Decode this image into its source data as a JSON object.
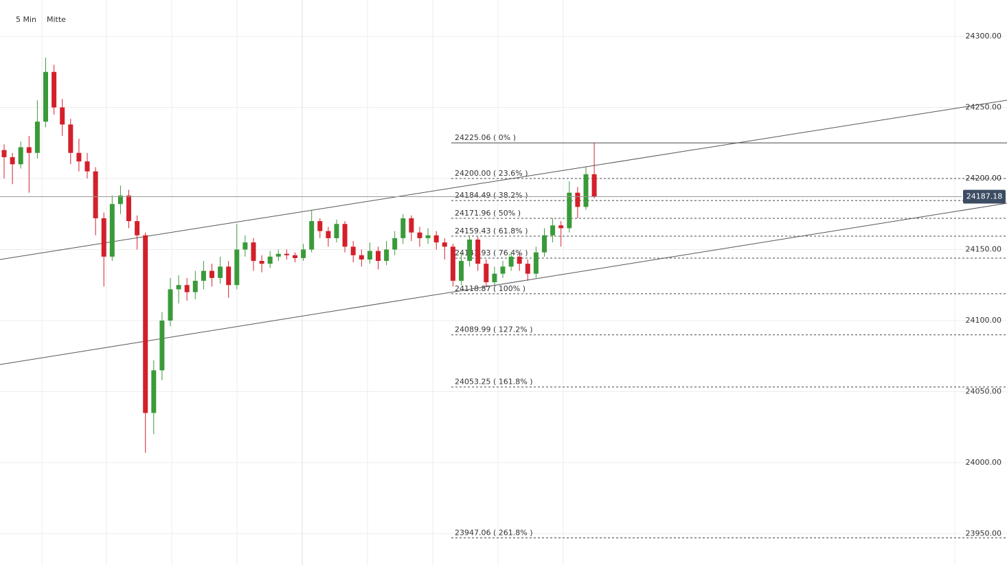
{
  "chart_data": {
    "type": "candlestick",
    "timeframe": "5 Min",
    "mode": "Mitte",
    "ylim": [
      23928,
      24325.6
    ],
    "yticks": [
      {
        "value": 23950,
        "label": "23950.00"
      },
      {
        "value": 24000,
        "label": "24000.00"
      },
      {
        "value": 24050,
        "label": "24050.00"
      },
      {
        "value": 24100,
        "label": "24100.00"
      },
      {
        "value": 24150,
        "label": "24150.00"
      },
      {
        "value": 24200,
        "label": "24200.00"
      },
      {
        "value": 24250,
        "label": "24250.00"
      },
      {
        "value": 24300,
        "label": "24300.00"
      }
    ],
    "grid": true,
    "up_color": "#3a9a3a",
    "down_color": "#d3202a",
    "open": [
      24220,
      24215,
      24210,
      24222,
      24218,
      24240,
      24275,
      24250,
      24238,
      24218,
      24212,
      24205,
      24172,
      24145,
      24182,
      24188,
      24170,
      24160,
      24035,
      24065,
      24100,
      24122,
      24125,
      24120,
      24128,
      24135,
      24130,
      24138,
      24125,
      24150,
      24155,
      24142,
      24140,
      24145,
      24147,
      24146,
      24144,
      24150,
      24170,
      24163,
      24158,
      24168,
      24152,
      24146,
      24143,
      24149,
      24142,
      24150,
      24158,
      24172,
      24162,
      24158,
      24160,
      24155,
      24152,
      24128,
      24142,
      24157,
      24140,
      24127,
      24133,
      24138,
      24145,
      24140,
      24133,
      24148,
      24160,
      24167,
      24165,
      24190,
      24180,
      24203
    ],
    "high": [
      24224,
      24218,
      24226,
      24230,
      24255,
      24285,
      24280,
      24256,
      24242,
      24228,
      24218,
      24208,
      24176,
      24188,
      24195,
      24192,
      24174,
      24162,
      24072,
      24106,
      24130,
      24132,
      24130,
      24135,
      24142,
      24140,
      24145,
      24142,
      24168,
      24160,
      24158,
      24146,
      24149,
      24150,
      24150,
      24148,
      24154,
      24178,
      24172,
      24166,
      24171,
      24170,
      24156,
      24150,
      24155,
      24152,
      24156,
      24163,
      24175,
      24174,
      24166,
      24165,
      24163,
      24158,
      24154,
      24148,
      24160,
      24159,
      24143,
      24138,
      24142,
      24148,
      24148,
      24143,
      24152,
      24165,
      24172,
      24170,
      24198,
      24194,
      24208,
      24225.06
    ],
    "low": [
      24200,
      24196,
      24207,
      24190,
      24214,
      24236,
      24245,
      24230,
      24210,
      24205,
      24200,
      24160,
      24124,
      24142,
      24175,
      24165,
      24150,
      24007,
      24020,
      24058,
      24096,
      24112,
      24114,
      24115,
      24122,
      24124,
      24126,
      24116,
      24122,
      24145,
      24135,
      24134,
      24137,
      24142,
      24143,
      24141,
      24142,
      24148,
      24158,
      24152,
      24155,
      24148,
      24141,
      24138,
      24140,
      24136,
      24139,
      24146,
      24154,
      24156,
      24152,
      24154,
      24150,
      24143,
      24124,
      24125,
      24138,
      24135,
      24124,
      24125,
      24130,
      24135,
      24135,
      24128,
      24130,
      24145,
      24155,
      24152,
      24162,
      24172,
      24178,
      24186
    ],
    "close": [
      24215,
      24210,
      24222,
      24218,
      24240,
      24275,
      24250,
      24238,
      24218,
      24212,
      24205,
      24172,
      24145,
      24182,
      24188,
      24170,
      24160,
      24035,
      24065,
      24100,
      24122,
      24125,
      24120,
      24128,
      24135,
      24130,
      24138,
      24125,
      24150,
      24155,
      24142,
      24140,
      24145,
      24147,
      24146,
      24144,
      24150,
      24170,
      24163,
      24158,
      24168,
      24152,
      24146,
      24143,
      24149,
      24142,
      24150,
      24158,
      24172,
      24162,
      24158,
      24160,
      24155,
      24152,
      24128,
      24142,
      24157,
      24140,
      24127,
      24133,
      24138,
      24145,
      24140,
      24133,
      24148,
      24160,
      24167,
      24165,
      24190,
      24180,
      24203,
      24187.18
    ],
    "last_price": 24187.18,
    "fib_levels": [
      {
        "value": 24225.06,
        "label": "24225.06 ( 0% )"
      },
      {
        "value": 24200.0,
        "label": "24200.00 ( 23.6% )"
      },
      {
        "value": 24184.49,
        "label": "24184.49 ( 38.2% )"
      },
      {
        "value": 24171.96,
        "label": "24171.96 ( 50% )"
      },
      {
        "value": 24159.43,
        "label": "24159.43 ( 61.8% )"
      },
      {
        "value": 24143.93,
        "label": "24143.93 ( 76.4% )"
      },
      {
        "value": 24118.87,
        "label": "24118.87 ( 100% )"
      },
      {
        "value": 24089.99,
        "label": "24089.99 ( 127.2% )"
      },
      {
        "value": 24053.25,
        "label": "24053.25 ( 161.8% )"
      },
      {
        "value": 23947.06,
        "label": "23947.06 ( 261.8% )"
      }
    ]
  }
}
